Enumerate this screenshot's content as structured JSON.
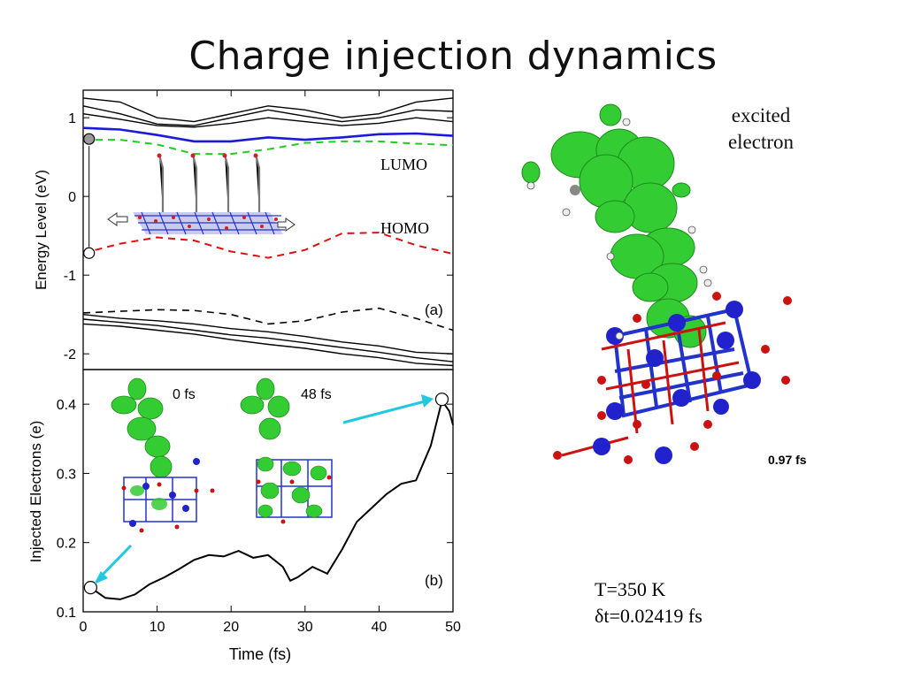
{
  "page": {
    "title": "Charge injection dynamics",
    "excited_label_line1": "excited",
    "excited_label_line2": "electron",
    "snapshot_time": "0.97 fs",
    "temperature": "T=350 K",
    "timestep": "δt=0.02419 fs"
  },
  "colors": {
    "levels_black": "#000000",
    "lumo_blue": "#1a1adc",
    "lumo_dashed_green": "#22cc22",
    "homo_red": "#dd1111",
    "density_green": "#33cc33",
    "atom_blue": "#2222cc",
    "atom_red": "#cc1111",
    "arrow_cyan": "#22c8e0"
  },
  "chart_data": [
    {
      "type": "line",
      "panel_label": "(a)",
      "xlim": [
        0,
        50
      ],
      "ylim": [
        -2.2,
        1.35
      ],
      "ylabel": "Energy Level (eV)",
      "yticks": [
        "-2",
        "-1",
        "0",
        "1"
      ],
      "annotations": [
        "LUMO",
        "HOMO"
      ],
      "series": [
        {
          "name": "LUMO",
          "style": "dashed-green",
          "x": [
            0,
            5,
            10,
            15,
            20,
            25,
            30,
            35,
            40,
            45,
            50
          ],
          "y": [
            0.72,
            0.72,
            0.66,
            0.54,
            0.54,
            0.6,
            0.68,
            0.7,
            0.7,
            0.67,
            0.65
          ]
        },
        {
          "style": "solid-blue",
          "x": [
            0,
            5,
            10,
            15,
            20,
            25,
            30,
            35,
            40,
            45,
            50
          ],
          "y": [
            0.87,
            0.85,
            0.78,
            0.7,
            0.7,
            0.75,
            0.72,
            0.75,
            0.79,
            0.8,
            0.77
          ]
        },
        {
          "name": "HOMO",
          "style": "dashed-red",
          "x": [
            0,
            5,
            10,
            15,
            20,
            25,
            30,
            35,
            40,
            45,
            50
          ],
          "y": [
            -0.72,
            -0.6,
            -0.52,
            -0.56,
            -0.7,
            -0.78,
            -0.68,
            -0.47,
            -0.46,
            -0.62,
            -0.73
          ]
        },
        {
          "style": "solid-black",
          "x": [
            0,
            5,
            10,
            15,
            20,
            25,
            30,
            35,
            40,
            45,
            50
          ],
          "y": [
            1.25,
            1.2,
            1.0,
            0.95,
            1.05,
            1.15,
            1.1,
            1.0,
            1.05,
            1.2,
            1.25
          ]
        },
        {
          "style": "solid-black",
          "x": [
            0,
            5,
            10,
            15,
            20,
            25,
            30,
            35,
            40,
            45,
            50
          ],
          "y": [
            1.15,
            1.05,
            0.92,
            0.9,
            1.0,
            1.1,
            1.02,
            0.95,
            1.0,
            1.1,
            1.08
          ]
        },
        {
          "style": "solid-black",
          "x": [
            0,
            5,
            10,
            15,
            20,
            25,
            30,
            35,
            40,
            45,
            50
          ],
          "y": [
            1.05,
            0.98,
            0.9,
            0.88,
            0.93,
            1.0,
            0.95,
            0.9,
            0.93,
            1.0,
            0.95
          ]
        },
        {
          "style": "dashed-black",
          "x": [
            0,
            5,
            10,
            15,
            20,
            25,
            30,
            35,
            40,
            45,
            50
          ],
          "y": [
            -1.48,
            -1.46,
            -1.44,
            -1.45,
            -1.5,
            -1.62,
            -1.58,
            -1.47,
            -1.42,
            -1.55,
            -1.7
          ]
        },
        {
          "style": "solid-black",
          "x": [
            0,
            5,
            10,
            15,
            20,
            25,
            30,
            35,
            40,
            45,
            50
          ],
          "y": [
            -1.5,
            -1.55,
            -1.58,
            -1.62,
            -1.68,
            -1.72,
            -1.78,
            -1.85,
            -1.9,
            -1.98,
            -2.0
          ]
        },
        {
          "style": "solid-black",
          "x": [
            0,
            5,
            10,
            15,
            20,
            25,
            30,
            35,
            40,
            45,
            50
          ],
          "y": [
            -1.56,
            -1.6,
            -1.64,
            -1.7,
            -1.76,
            -1.8,
            -1.86,
            -1.92,
            -1.98,
            -2.05,
            -2.1
          ]
        },
        {
          "style": "solid-black",
          "x": [
            0,
            5,
            10,
            15,
            20,
            25,
            30,
            35,
            40,
            45,
            50
          ],
          "y": [
            -1.62,
            -1.65,
            -1.7,
            -1.75,
            -1.82,
            -1.88,
            -1.93,
            -2.0,
            -2.05,
            -2.12,
            -2.15
          ]
        }
      ],
      "markers": [
        {
          "x": 0.8,
          "y": 0.73,
          "fill": "gray"
        },
        {
          "x": 0.8,
          "y": -0.72,
          "fill": "white"
        }
      ]
    },
    {
      "type": "line",
      "panel_label": "(b)",
      "xlabel": "Time (fs)",
      "ylabel": "Injected Electrons (e)",
      "xlim": [
        0,
        50
      ],
      "ylim": [
        0.1,
        0.45
      ],
      "xticks": [
        "0",
        "10",
        "20",
        "30",
        "40",
        "50"
      ],
      "yticks": [
        "0.1",
        "0.2",
        "0.3",
        "0.4"
      ],
      "inset_labels": [
        "0 fs",
        "48 fs"
      ],
      "series": [
        {
          "x": [
            1,
            3,
            5,
            7,
            9,
            11,
            13,
            15,
            17,
            19,
            21,
            23,
            25,
            27,
            28,
            29,
            31,
            33,
            35,
            37,
            39,
            41,
            43,
            45,
            47,
            48.5,
            49.5,
            50
          ],
          "y": [
            0.135,
            0.12,
            0.118,
            0.125,
            0.14,
            0.15,
            0.162,
            0.175,
            0.182,
            0.18,
            0.188,
            0.178,
            0.182,
            0.165,
            0.145,
            0.15,
            0.165,
            0.155,
            0.19,
            0.23,
            0.25,
            0.27,
            0.285,
            0.29,
            0.34,
            0.405,
            0.39,
            0.37
          ]
        }
      ],
      "markers": [
        {
          "x": 1,
          "y": 0.135
        },
        {
          "x": 48.5,
          "y": 0.407
        }
      ]
    }
  ]
}
